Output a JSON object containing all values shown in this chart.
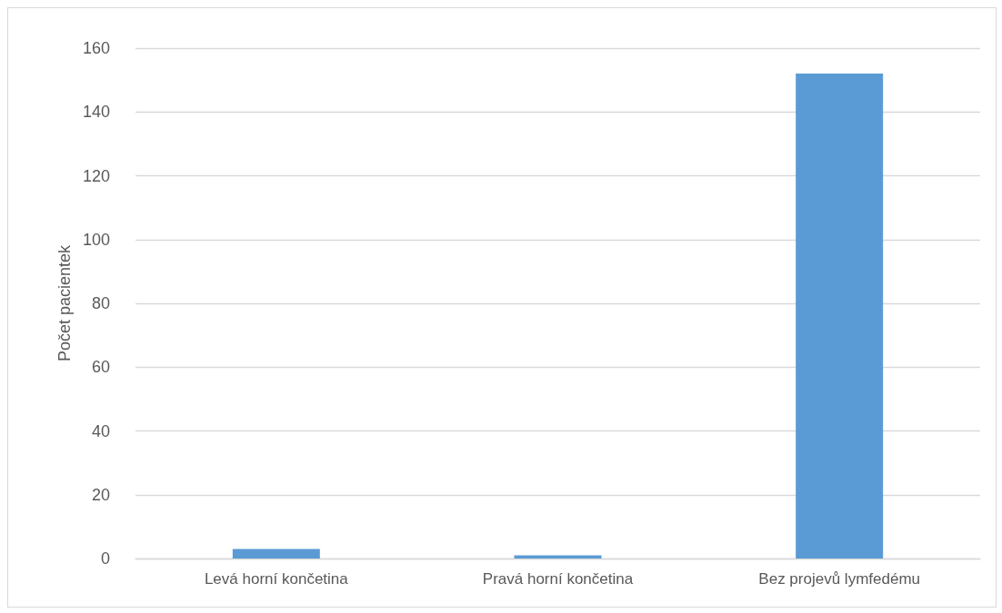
{
  "chart_data": {
    "type": "bar",
    "ylabel": "Počet pacientek",
    "categories": [
      "Levá horní končetina",
      "Pravá horní končetina",
      "Bez projevů lymfedému"
    ],
    "values": [
      3,
      1,
      152
    ],
    "color": "#5b9bd5",
    "ylim": [
      0,
      160
    ],
    "yticks": [
      0,
      20,
      40,
      60,
      80,
      100,
      120,
      140,
      160
    ],
    "grid": "y"
  }
}
